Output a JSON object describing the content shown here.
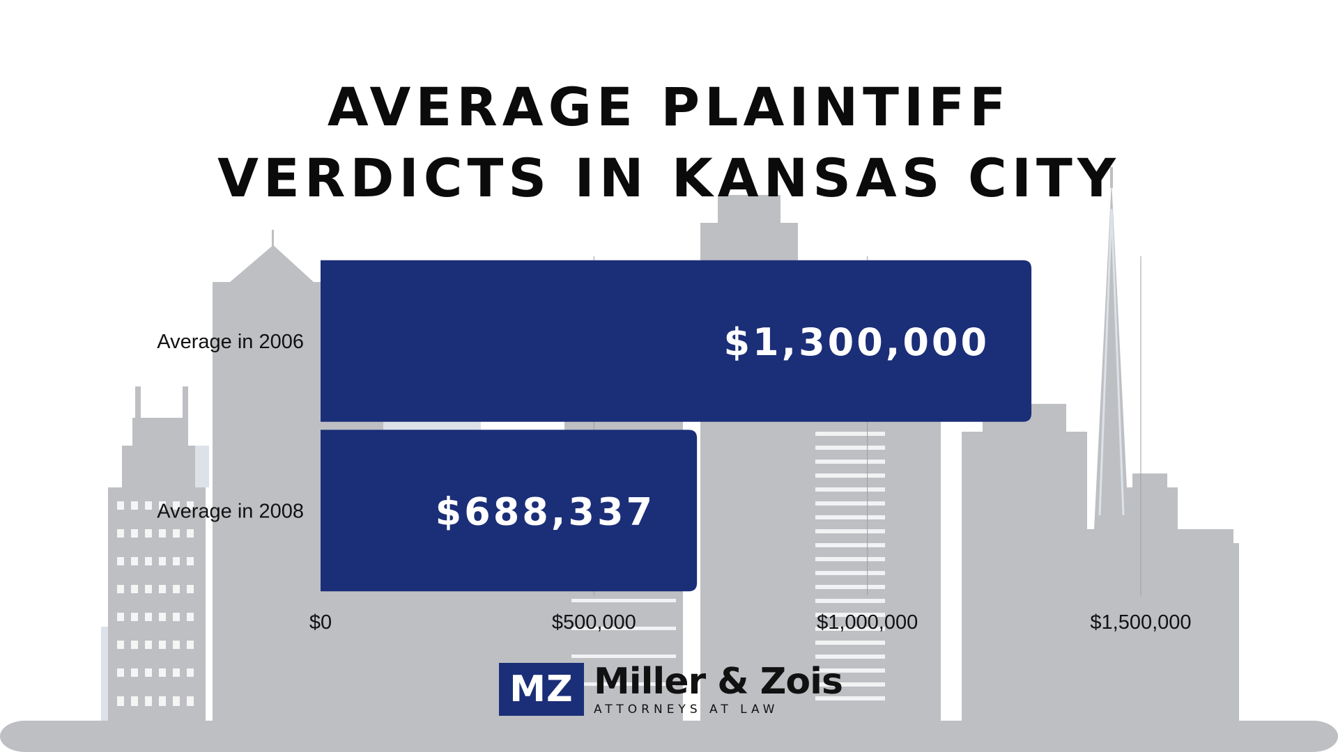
{
  "title_lines": [
    "AVERAGE PLAINTIFF",
    "VERDICTS IN KANSAS CITY"
  ],
  "colors": {
    "bar": "#1b2e78",
    "skyline": "#bdbfc3",
    "skyline_light": "#dde2e8",
    "text": "#111111"
  },
  "chart_data": {
    "type": "bar",
    "orientation": "horizontal",
    "title": "AVERAGE PLAINTIFF VERDICTS IN KANSAS CITY",
    "categories": [
      "Average in 2006",
      "Average in 2008"
    ],
    "values": [
      1300000,
      688337
    ],
    "value_labels": [
      "$1,300,000",
      "$688,337"
    ],
    "xlim": [
      0,
      1500000
    ],
    "x_ticks": [
      0,
      500000,
      1000000,
      1500000
    ],
    "x_tick_labels": [
      "$0",
      "$500,000",
      "$1,000,000",
      "$1,500,000"
    ],
    "grid": true
  },
  "logo": {
    "mark": "MZ",
    "name": "Miller & Zois",
    "tagline": "ATTORNEYS AT LAW"
  }
}
